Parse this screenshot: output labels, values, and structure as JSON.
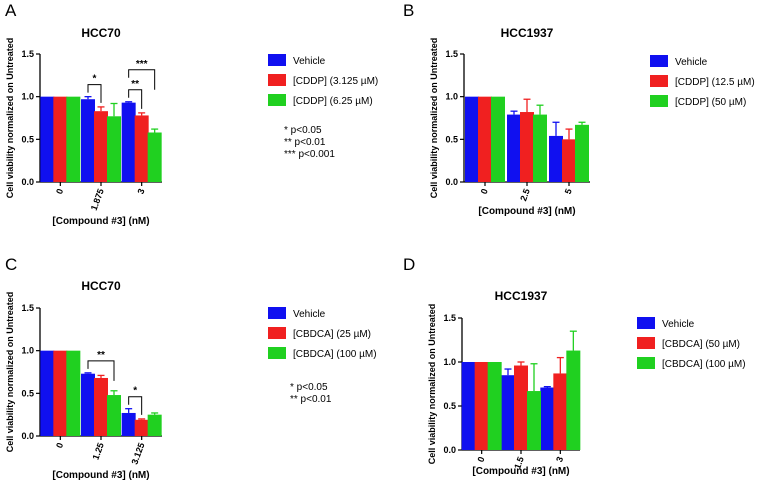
{
  "chart_data": [
    {
      "panel": "A",
      "title": "HCC70",
      "type": "bar",
      "xlabel": "[Compound #3] (nM)",
      "ylabel": "Cell viability normalized on Untreated",
      "ylim": [
        0,
        1.5
      ],
      "yticks": [
        "0.0",
        "0.5",
        "1.0",
        "1.5"
      ],
      "categories": [
        "0",
        "1.875",
        "3"
      ],
      "series": [
        {
          "name": "Vehicle",
          "color": "#1010f0",
          "values": [
            1.0,
            0.97,
            0.93
          ],
          "errors": [
            0,
            0.03,
            0.01
          ]
        },
        {
          "name": "[CDDP] (3.125 µM)",
          "color": "#f02020",
          "values": [
            1.0,
            0.83,
            0.78
          ],
          "errors": [
            0,
            0.05,
            0.03
          ]
        },
        {
          "name": "[CDDP] (6.25 µM)",
          "color": "#20d020",
          "values": [
            1.0,
            0.77,
            0.58
          ],
          "errors": [
            0,
            0.15,
            0.04
          ]
        }
      ],
      "annotations": [
        {
          "text": "*",
          "category": 1,
          "from": 0,
          "to": 1
        },
        {
          "text": "**",
          "category": 2,
          "from": 0,
          "to": 1
        },
        {
          "text": "***",
          "category": 2,
          "from": 0,
          "to": 2
        }
      ],
      "notes": [
        "* p<0.05",
        "** p<0.01",
        "*** p<0.001"
      ]
    },
    {
      "panel": "B",
      "title": "HCC1937",
      "type": "bar",
      "xlabel": "[Compound #3] (nM)",
      "ylabel": "Cell viability normalized on Untreated",
      "ylim": [
        0,
        1.5
      ],
      "yticks": [
        "0.0",
        "0.5",
        "1.0",
        "1.5"
      ],
      "categories": [
        "0",
        "2.5",
        "5"
      ],
      "series": [
        {
          "name": "Vehicle",
          "color": "#1010f0",
          "values": [
            1.0,
            0.79,
            0.54
          ],
          "errors": [
            0,
            0.04,
            0.16
          ]
        },
        {
          "name": "[CDDP] (12.5 µM)",
          "color": "#f02020",
          "values": [
            1.0,
            0.82,
            0.5
          ],
          "errors": [
            0,
            0.15,
            0.12
          ]
        },
        {
          "name": "[CDDP] (50 µM)",
          "color": "#20d020",
          "values": [
            1.0,
            0.79,
            0.67
          ],
          "errors": [
            0,
            0.11,
            0.03
          ]
        }
      ],
      "annotations": [],
      "notes": []
    },
    {
      "panel": "C",
      "title": "HCC70",
      "type": "bar",
      "xlabel": "[Compound #3] (nM)",
      "ylabel": "Cell viability normalized on Untreated",
      "ylim": [
        0,
        1.5
      ],
      "yticks": [
        "0.0",
        "0.5",
        "1.0",
        "1.5"
      ],
      "categories": [
        "0",
        "1.25",
        "3.125"
      ],
      "series": [
        {
          "name": "Vehicle",
          "color": "#1010f0",
          "values": [
            1.0,
            0.73,
            0.27
          ],
          "errors": [
            0,
            0.01,
            0.05
          ]
        },
        {
          "name": "[CBDCA] (25 µM)",
          "color": "#f02020",
          "values": [
            1.0,
            0.68,
            0.19
          ],
          "errors": [
            0,
            0.03,
            0.01
          ]
        },
        {
          "name": "[CBDCA] (100 µM)",
          "color": "#20d020",
          "values": [
            1.0,
            0.48,
            0.25
          ],
          "errors": [
            0,
            0.05,
            0.02
          ]
        }
      ],
      "annotations": [
        {
          "text": "**",
          "category": 1,
          "from": 0,
          "to": 2
        },
        {
          "text": "*",
          "category": 2,
          "from": 0,
          "to": 1
        }
      ],
      "notes": [
        "* p<0.05",
        "** p<0.01"
      ]
    },
    {
      "panel": "D",
      "title": "HCC1937",
      "type": "bar",
      "xlabel": "[Compound #3] (nM)",
      "ylabel": "Cell viability normalized on Untreated",
      "ylim": [
        0,
        1.5
      ],
      "yticks": [
        "0.0",
        "0.5",
        "1.0",
        "1.5"
      ],
      "categories": [
        "0",
        "1.5",
        "3"
      ],
      "series": [
        {
          "name": "Vehicle",
          "color": "#1010f0",
          "values": [
            1.0,
            0.85,
            0.71
          ],
          "errors": [
            0,
            0.07,
            0.01
          ]
        },
        {
          "name": "[CBDCA] (50 µM)",
          "color": "#f02020",
          "values": [
            1.0,
            0.96,
            0.87
          ],
          "errors": [
            0,
            0.04,
            0.18
          ]
        },
        {
          "name": "[CBDCA] (100 µM)",
          "color": "#20d020",
          "values": [
            1.0,
            0.67,
            1.13
          ],
          "errors": [
            0,
            0.31,
            0.22
          ]
        }
      ],
      "annotations": [],
      "notes": []
    }
  ]
}
